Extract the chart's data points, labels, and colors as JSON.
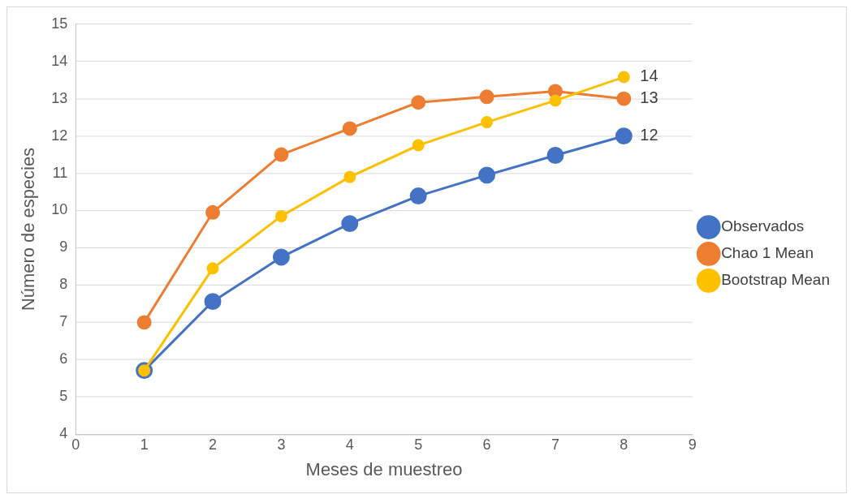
{
  "chart_data": {
    "type": "line",
    "xlabel": "Meses de muestreo",
    "ylabel": "Número de especies",
    "x": [
      1,
      2,
      3,
      4,
      5,
      6,
      7,
      8
    ],
    "series": [
      {
        "name": "Observados",
        "color": "#4472c4",
        "values": [
          5.71,
          7.56,
          8.75,
          9.65,
          10.39,
          10.95,
          11.48,
          12.0
        ],
        "value_labels": [
          null,
          null,
          null,
          null,
          null,
          null,
          null,
          "12"
        ]
      },
      {
        "name": "Chao 1 Mean",
        "color": "#ed7d31",
        "values": [
          7.0,
          9.95,
          11.5,
          12.2,
          12.9,
          13.05,
          13.2,
          13.0
        ],
        "value_labels": [
          null,
          null,
          null,
          null,
          null,
          null,
          null,
          "13"
        ]
      },
      {
        "name": "Bootstrap Mean",
        "color": "#ffc000",
        "values": [
          5.71,
          8.45,
          9.85,
          10.9,
          11.75,
          12.37,
          12.95,
          13.58
        ],
        "value_labels": [
          null,
          null,
          null,
          null,
          null,
          null,
          null,
          "14"
        ]
      }
    ],
    "xlim": [
      0,
      9
    ],
    "xticks": [
      0,
      1,
      2,
      3,
      4,
      5,
      6,
      7,
      8,
      9
    ],
    "ylim": [
      4,
      15
    ],
    "yticks": [
      4,
      5,
      6,
      7,
      8,
      9,
      10,
      11,
      12,
      13,
      14,
      15
    ],
    "grid": "y",
    "legend": "right",
    "marker": "circle",
    "line_style": "solid"
  }
}
